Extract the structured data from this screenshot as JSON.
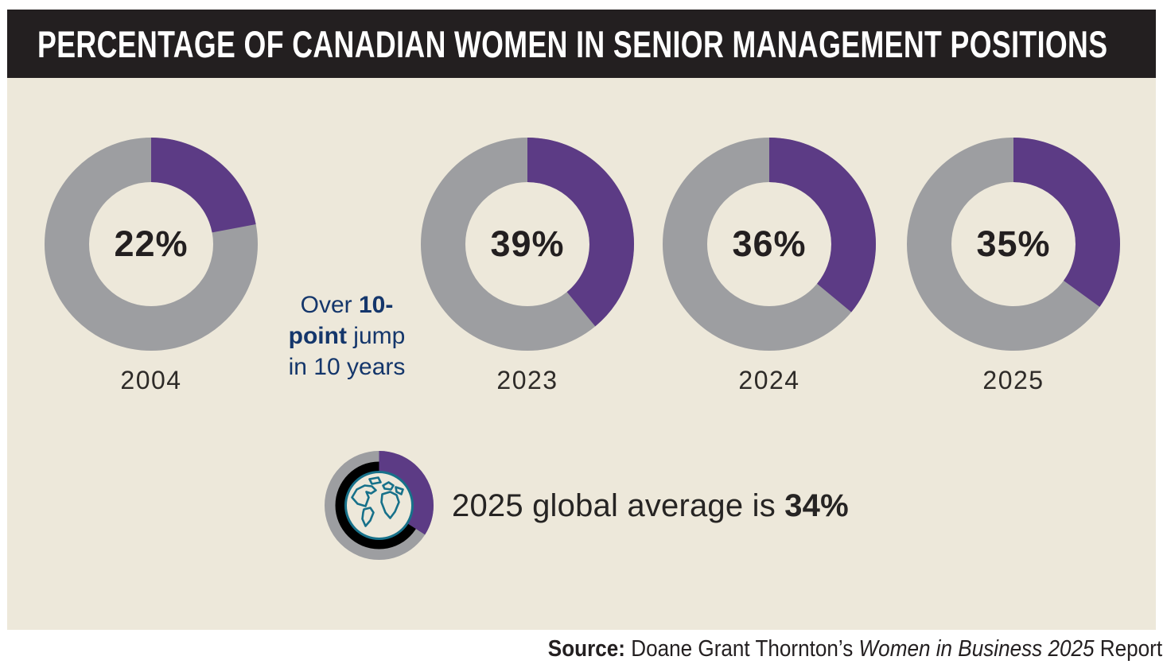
{
  "header": {
    "title": "PERCENTAGE OF CANADIAN WOMEN IN SENIOR MANAGEMENT POSITIONS"
  },
  "chart_data": {
    "type": "pie",
    "variant": "donut-series",
    "title": "PERCENTAGE OF CANADIAN WOMEN IN SENIOR MANAGEMENT POSITIONS",
    "unit": "percent",
    "start_angle_deg": 0,
    "direction": "clockwise",
    "points": [
      {
        "year": "2004",
        "value": 22,
        "label": "22%"
      },
      {
        "year": "2023",
        "value": 39,
        "label": "39%"
      },
      {
        "year": "2024",
        "value": 36,
        "label": "36%"
      },
      {
        "year": "2025",
        "value": 35,
        "label": "35%"
      }
    ],
    "annotation": {
      "plain_text": "Over 10-point jump in 10 years",
      "lines": [
        [
          {
            "t": "Over "
          },
          {
            "t": "10-",
            "b": true
          }
        ],
        [
          {
            "t": "point",
            "b": true
          },
          {
            "t": " jump"
          }
        ],
        [
          {
            "t": "in 10 years"
          }
        ]
      ]
    },
    "global_average": {
      "year": "2025",
      "value": 34,
      "label": "34%",
      "rich": [
        {
          "t": "2025 global average is "
        },
        {
          "t": "34%",
          "b": true
        }
      ],
      "plain_text": "2025 global average is 34%"
    },
    "colors": {
      "purple": "#5c3b85",
      "gray": "#9d9ea1",
      "navy": "#14366b",
      "teal": "#17718a",
      "cream": "#ede8da",
      "ink": "#231f20"
    }
  },
  "footer": {
    "plain_text": "Source: Doane Grant Thornton's Women in Business 2025 Report",
    "source_rich": [
      {
        "t": "Source: ",
        "b": true
      },
      {
        "t": "Doane Grant Thornton’s "
      },
      {
        "t": "Women in Business 2025",
        "i": true
      },
      {
        "t": " Report"
      }
    ]
  }
}
